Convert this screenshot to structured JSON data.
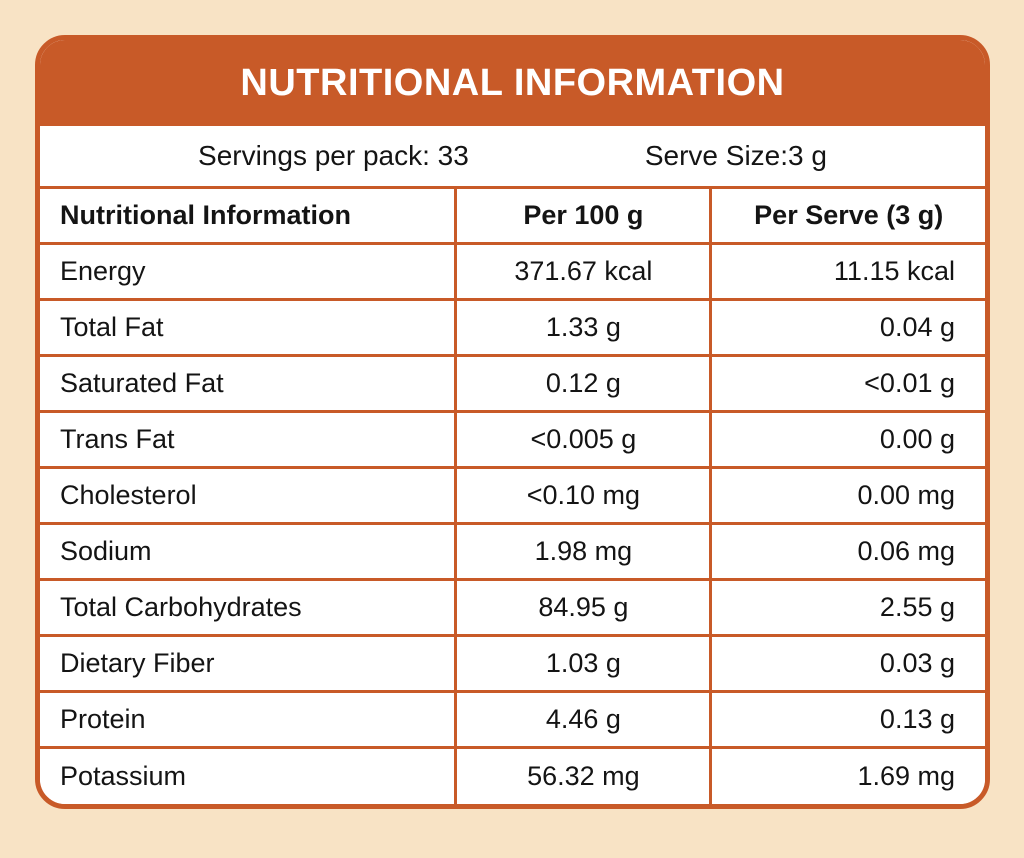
{
  "title": "NUTRITIONAL INFORMATION",
  "servings": {
    "per_pack_label": "Servings per pack: 33",
    "serve_size_label": "Serve Size:3 g"
  },
  "table": {
    "headers": [
      "Nutritional Information",
      "Per 100 g",
      "Per Serve (3 g)"
    ],
    "rows": [
      {
        "nutrient": "Energy",
        "per_100g": "371.67 kcal",
        "per_serve": "11.15 kcal"
      },
      {
        "nutrient": "Total Fat",
        "per_100g": "1.33 g",
        "per_serve": "0.04 g"
      },
      {
        "nutrient": "Saturated Fat",
        "per_100g": "0.12 g",
        "per_serve": "<0.01 g"
      },
      {
        "nutrient": "Trans Fat",
        "per_100g": "<0.005 g",
        "per_serve": "0.00 g"
      },
      {
        "nutrient": "Cholesterol",
        "per_100g": "<0.10 mg",
        "per_serve": "0.00 mg"
      },
      {
        "nutrient": "Sodium",
        "per_100g": "1.98 mg",
        "per_serve": "0.06 mg"
      },
      {
        "nutrient": "Total Carbohydrates",
        "per_100g": "84.95 g",
        "per_serve": "2.55 g"
      },
      {
        "nutrient": "Dietary Fiber",
        "per_100g": "1.03 g",
        "per_serve": "0.03 g"
      },
      {
        "nutrient": "Protein",
        "per_100g": "4.46 g",
        "per_serve": "0.13 g"
      },
      {
        "nutrient": "Potassium",
        "per_100g": "56.32 mg",
        "per_serve": "1.69 mg"
      }
    ]
  },
  "colors": {
    "accent": "#C85A28",
    "background": "#F8E3C5",
    "text": "#141414",
    "white": "#FFFFFF"
  }
}
